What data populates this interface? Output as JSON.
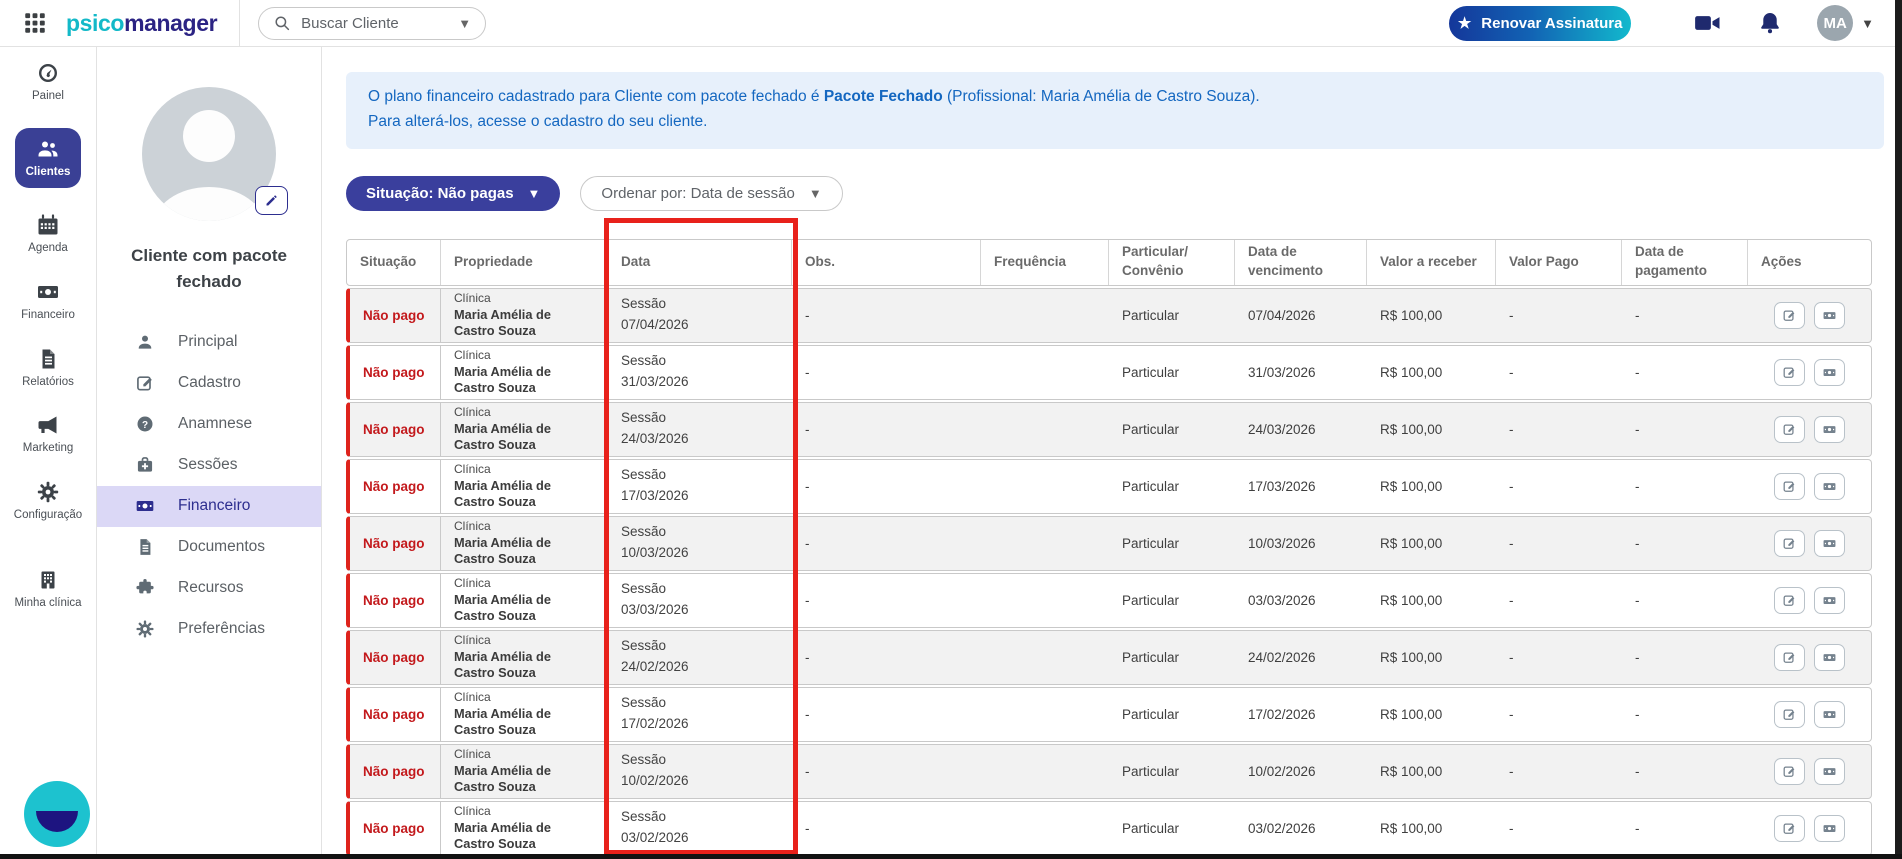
{
  "topbar": {
    "logo_part1": "psico",
    "logo_part2": "manager",
    "search_placeholder": "Buscar Cliente",
    "renew_button_label": "Renovar Assinatura",
    "avatar_initials": "MA"
  },
  "sidebar": {
    "items": [
      {
        "label": "Painel",
        "icon": "gauge",
        "active": false
      },
      {
        "label": "Clientes",
        "icon": "people",
        "active": true
      },
      {
        "label": "Agenda",
        "icon": "calendar",
        "active": false
      },
      {
        "label": "Financeiro",
        "icon": "banknote",
        "active": false
      },
      {
        "label": "Relatórios",
        "icon": "document",
        "active": false
      },
      {
        "label": "Marketing",
        "icon": "megaphone",
        "active": false
      },
      {
        "label": "Configuração",
        "icon": "gear",
        "active": false
      },
      {
        "label": "Minha clínica",
        "icon": "building",
        "active": false,
        "extra_gap": true
      }
    ]
  },
  "client_panel": {
    "client_name": "Cliente com pacote fechado",
    "menu": [
      {
        "label": "Principal",
        "icon": "person",
        "active": false
      },
      {
        "label": "Cadastro",
        "icon": "edit-square",
        "active": false
      },
      {
        "label": "Anamnese",
        "icon": "question",
        "active": false
      },
      {
        "label": "Sessões",
        "icon": "medical-bag",
        "active": false
      },
      {
        "label": "Financeiro",
        "icon": "banknote",
        "active": true
      },
      {
        "label": "Documentos",
        "icon": "document",
        "active": false
      },
      {
        "label": "Recursos",
        "icon": "puzzle",
        "active": false
      },
      {
        "label": "Preferências",
        "icon": "gear",
        "active": false
      }
    ]
  },
  "banner": {
    "line1_part1": "O plano financeiro cadastrado para Cliente com pacote fechado é ",
    "line1_bold": "Pacote Fechado",
    "line1_part2": " (Profissional: Maria Amélia de Castro Souza).",
    "line2": "Para alterá-los, acesse o cadastro do seu cliente."
  },
  "filters": {
    "situacao_label": "Situação: Não pagas",
    "ordenar_label": "Ordenar por: Data de sessão"
  },
  "table": {
    "columns": [
      "Situação",
      "Propriedade",
      "Data",
      "Obs.",
      "Frequência",
      "Particular/\nConvênio",
      "Data de\nvencimento",
      "Valor a receber",
      "Valor Pago",
      "Data de\npagamento",
      "Ações"
    ],
    "rows": [
      {
        "situacao": "Não pago",
        "propriedade_tipo": "Clínica",
        "propriedade_nome": "Maria Amélia de Castro Souza",
        "data_tipo": "Sessão",
        "data_valor": "07/04/2026",
        "obs": "-",
        "frequencia": "",
        "particular_convenio": "Particular",
        "data_vencimento": "07/04/2026",
        "valor_a_receber": "R$ 100,00",
        "valor_pago": "-",
        "data_pagamento": "-"
      },
      {
        "situacao": "Não pago",
        "propriedade_tipo": "Clínica",
        "propriedade_nome": "Maria Amélia de Castro Souza",
        "data_tipo": "Sessão",
        "data_valor": "31/03/2026",
        "obs": "-",
        "frequencia": "",
        "particular_convenio": "Particular",
        "data_vencimento": "31/03/2026",
        "valor_a_receber": "R$ 100,00",
        "valor_pago": "-",
        "data_pagamento": "-"
      },
      {
        "situacao": "Não pago",
        "propriedade_tipo": "Clínica",
        "propriedade_nome": "Maria Amélia de Castro Souza",
        "data_tipo": "Sessão",
        "data_valor": "24/03/2026",
        "obs": "-",
        "frequencia": "",
        "particular_convenio": "Particular",
        "data_vencimento": "24/03/2026",
        "valor_a_receber": "R$ 100,00",
        "valor_pago": "-",
        "data_pagamento": "-"
      },
      {
        "situacao": "Não pago",
        "propriedade_tipo": "Clínica",
        "propriedade_nome": "Maria Amélia de Castro Souza",
        "data_tipo": "Sessão",
        "data_valor": "17/03/2026",
        "obs": "-",
        "frequencia": "",
        "particular_convenio": "Particular",
        "data_vencimento": "17/03/2026",
        "valor_a_receber": "R$ 100,00",
        "valor_pago": "-",
        "data_pagamento": "-"
      },
      {
        "situacao": "Não pago",
        "propriedade_tipo": "Clínica",
        "propriedade_nome": "Maria Amélia de Castro Souza",
        "data_tipo": "Sessão",
        "data_valor": "10/03/2026",
        "obs": "-",
        "frequencia": "",
        "particular_convenio": "Particular",
        "data_vencimento": "10/03/2026",
        "valor_a_receber": "R$ 100,00",
        "valor_pago": "-",
        "data_pagamento": "-"
      },
      {
        "situacao": "Não pago",
        "propriedade_tipo": "Clínica",
        "propriedade_nome": "Maria Amélia de Castro Souza",
        "data_tipo": "Sessão",
        "data_valor": "03/03/2026",
        "obs": "-",
        "frequencia": "",
        "particular_convenio": "Particular",
        "data_vencimento": "03/03/2026",
        "valor_a_receber": "R$ 100,00",
        "valor_pago": "-",
        "data_pagamento": "-"
      },
      {
        "situacao": "Não pago",
        "propriedade_tipo": "Clínica",
        "propriedade_nome": "Maria Amélia de Castro Souza",
        "data_tipo": "Sessão",
        "data_valor": "24/02/2026",
        "obs": "-",
        "frequencia": "",
        "particular_convenio": "Particular",
        "data_vencimento": "24/02/2026",
        "valor_a_receber": "R$ 100,00",
        "valor_pago": "-",
        "data_pagamento": "-"
      },
      {
        "situacao": "Não pago",
        "propriedade_tipo": "Clínica",
        "propriedade_nome": "Maria Amélia de Castro Souza",
        "data_tipo": "Sessão",
        "data_valor": "17/02/2026",
        "obs": "-",
        "frequencia": "",
        "particular_convenio": "Particular",
        "data_vencimento": "17/02/2026",
        "valor_a_receber": "R$ 100,00",
        "valor_pago": "-",
        "data_pagamento": "-"
      },
      {
        "situacao": "Não pago",
        "propriedade_tipo": "Clínica",
        "propriedade_nome": "Maria Amélia de Castro Souza",
        "data_tipo": "Sessão",
        "data_valor": "10/02/2026",
        "obs": "-",
        "frequencia": "",
        "particular_convenio": "Particular",
        "data_vencimento": "10/02/2026",
        "valor_a_receber": "R$ 100,00",
        "valor_pago": "-",
        "data_pagamento": "-"
      },
      {
        "situacao": "Não pago",
        "propriedade_tipo": "Clínica",
        "propriedade_nome": "Maria Amélia de Castro Souza",
        "data_tipo": "Sessão",
        "data_valor": "03/02/2026",
        "obs": "-",
        "frequencia": "",
        "particular_convenio": "Particular",
        "data_vencimento": "03/02/2026",
        "valor_a_receber": "R$ 100,00",
        "valor_pago": "-",
        "data_pagamento": "-"
      }
    ]
  },
  "colors": {
    "brand_teal": "#13b9c8",
    "brand_navy": "#2b2383",
    "active_indigo": "#3a3f9d",
    "menu_highlight": "#dbd8f6",
    "banner_bg": "#e7f0fb",
    "banner_text": "#1467c0",
    "status_unpaid_red": "#c3191c",
    "highlight_box_red": "#e8211b",
    "renew_gradient_start": "#14379a",
    "renew_gradient_end": "#12b9cd"
  }
}
